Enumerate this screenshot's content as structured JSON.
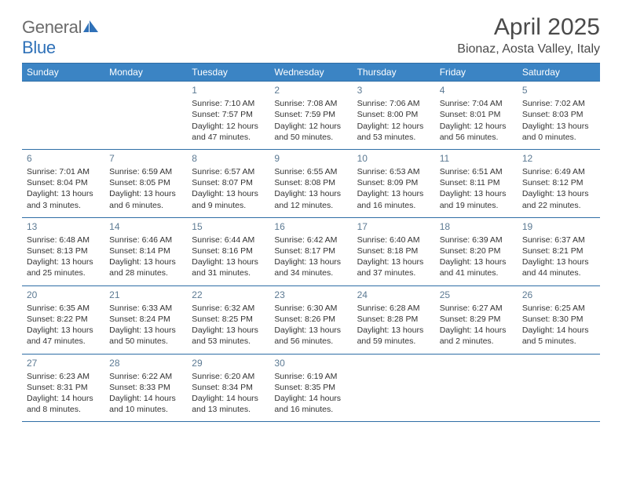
{
  "brand": {
    "part1": "General",
    "part2": "Blue"
  },
  "title": "April 2025",
  "location": "Bionaz, Aosta Valley, Italy",
  "colors": {
    "header_bg": "#3b84c4",
    "border": "#2f6ea6",
    "daynum": "#5c7a93",
    "logo_gray": "#6b6b6b",
    "logo_blue": "#2f71b8"
  },
  "day_headers": [
    "Sunday",
    "Monday",
    "Tuesday",
    "Wednesday",
    "Thursday",
    "Friday",
    "Saturday"
  ],
  "weeks": [
    [
      null,
      null,
      {
        "n": "1",
        "sr": "Sunrise: 7:10 AM",
        "ss": "Sunset: 7:57 PM",
        "dl": "Daylight: 12 hours and 47 minutes."
      },
      {
        "n": "2",
        "sr": "Sunrise: 7:08 AM",
        "ss": "Sunset: 7:59 PM",
        "dl": "Daylight: 12 hours and 50 minutes."
      },
      {
        "n": "3",
        "sr": "Sunrise: 7:06 AM",
        "ss": "Sunset: 8:00 PM",
        "dl": "Daylight: 12 hours and 53 minutes."
      },
      {
        "n": "4",
        "sr": "Sunrise: 7:04 AM",
        "ss": "Sunset: 8:01 PM",
        "dl": "Daylight: 12 hours and 56 minutes."
      },
      {
        "n": "5",
        "sr": "Sunrise: 7:02 AM",
        "ss": "Sunset: 8:03 PM",
        "dl": "Daylight: 13 hours and 0 minutes."
      }
    ],
    [
      {
        "n": "6",
        "sr": "Sunrise: 7:01 AM",
        "ss": "Sunset: 8:04 PM",
        "dl": "Daylight: 13 hours and 3 minutes."
      },
      {
        "n": "7",
        "sr": "Sunrise: 6:59 AM",
        "ss": "Sunset: 8:05 PM",
        "dl": "Daylight: 13 hours and 6 minutes."
      },
      {
        "n": "8",
        "sr": "Sunrise: 6:57 AM",
        "ss": "Sunset: 8:07 PM",
        "dl": "Daylight: 13 hours and 9 minutes."
      },
      {
        "n": "9",
        "sr": "Sunrise: 6:55 AM",
        "ss": "Sunset: 8:08 PM",
        "dl": "Daylight: 13 hours and 12 minutes."
      },
      {
        "n": "10",
        "sr": "Sunrise: 6:53 AM",
        "ss": "Sunset: 8:09 PM",
        "dl": "Daylight: 13 hours and 16 minutes."
      },
      {
        "n": "11",
        "sr": "Sunrise: 6:51 AM",
        "ss": "Sunset: 8:11 PM",
        "dl": "Daylight: 13 hours and 19 minutes."
      },
      {
        "n": "12",
        "sr": "Sunrise: 6:49 AM",
        "ss": "Sunset: 8:12 PM",
        "dl": "Daylight: 13 hours and 22 minutes."
      }
    ],
    [
      {
        "n": "13",
        "sr": "Sunrise: 6:48 AM",
        "ss": "Sunset: 8:13 PM",
        "dl": "Daylight: 13 hours and 25 minutes."
      },
      {
        "n": "14",
        "sr": "Sunrise: 6:46 AM",
        "ss": "Sunset: 8:14 PM",
        "dl": "Daylight: 13 hours and 28 minutes."
      },
      {
        "n": "15",
        "sr": "Sunrise: 6:44 AM",
        "ss": "Sunset: 8:16 PM",
        "dl": "Daylight: 13 hours and 31 minutes."
      },
      {
        "n": "16",
        "sr": "Sunrise: 6:42 AM",
        "ss": "Sunset: 8:17 PM",
        "dl": "Daylight: 13 hours and 34 minutes."
      },
      {
        "n": "17",
        "sr": "Sunrise: 6:40 AM",
        "ss": "Sunset: 8:18 PM",
        "dl": "Daylight: 13 hours and 37 minutes."
      },
      {
        "n": "18",
        "sr": "Sunrise: 6:39 AM",
        "ss": "Sunset: 8:20 PM",
        "dl": "Daylight: 13 hours and 41 minutes."
      },
      {
        "n": "19",
        "sr": "Sunrise: 6:37 AM",
        "ss": "Sunset: 8:21 PM",
        "dl": "Daylight: 13 hours and 44 minutes."
      }
    ],
    [
      {
        "n": "20",
        "sr": "Sunrise: 6:35 AM",
        "ss": "Sunset: 8:22 PM",
        "dl": "Daylight: 13 hours and 47 minutes."
      },
      {
        "n": "21",
        "sr": "Sunrise: 6:33 AM",
        "ss": "Sunset: 8:24 PM",
        "dl": "Daylight: 13 hours and 50 minutes."
      },
      {
        "n": "22",
        "sr": "Sunrise: 6:32 AM",
        "ss": "Sunset: 8:25 PM",
        "dl": "Daylight: 13 hours and 53 minutes."
      },
      {
        "n": "23",
        "sr": "Sunrise: 6:30 AM",
        "ss": "Sunset: 8:26 PM",
        "dl": "Daylight: 13 hours and 56 minutes."
      },
      {
        "n": "24",
        "sr": "Sunrise: 6:28 AM",
        "ss": "Sunset: 8:28 PM",
        "dl": "Daylight: 13 hours and 59 minutes."
      },
      {
        "n": "25",
        "sr": "Sunrise: 6:27 AM",
        "ss": "Sunset: 8:29 PM",
        "dl": "Daylight: 14 hours and 2 minutes."
      },
      {
        "n": "26",
        "sr": "Sunrise: 6:25 AM",
        "ss": "Sunset: 8:30 PM",
        "dl": "Daylight: 14 hours and 5 minutes."
      }
    ],
    [
      {
        "n": "27",
        "sr": "Sunrise: 6:23 AM",
        "ss": "Sunset: 8:31 PM",
        "dl": "Daylight: 14 hours and 8 minutes."
      },
      {
        "n": "28",
        "sr": "Sunrise: 6:22 AM",
        "ss": "Sunset: 8:33 PM",
        "dl": "Daylight: 14 hours and 10 minutes."
      },
      {
        "n": "29",
        "sr": "Sunrise: 6:20 AM",
        "ss": "Sunset: 8:34 PM",
        "dl": "Daylight: 14 hours and 13 minutes."
      },
      {
        "n": "30",
        "sr": "Sunrise: 6:19 AM",
        "ss": "Sunset: 8:35 PM",
        "dl": "Daylight: 14 hours and 16 minutes."
      },
      null,
      null,
      null
    ]
  ]
}
